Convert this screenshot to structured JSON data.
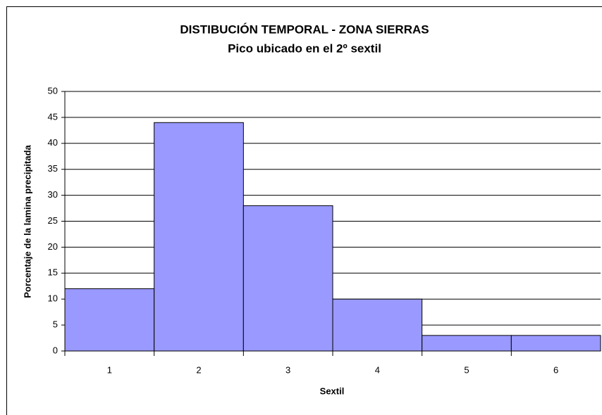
{
  "chart_data": {
    "type": "bar",
    "title": "DISTIBUCIÓN TEMPORAL - ZONA SIERRAS",
    "subtitle": "Pico ubicado en el 2º sextil",
    "x_label": "Sextil",
    "y_label": "Porcentaje de la lamina precipitada",
    "categories": [
      "1",
      "2",
      "3",
      "4",
      "5",
      "6"
    ],
    "values": [
      12,
      44,
      28,
      10,
      3,
      3
    ],
    "color": "#9999ff",
    "ylim": [
      0,
      50
    ],
    "yticks": [
      0,
      5,
      10,
      15,
      20,
      25,
      30,
      35,
      40,
      45,
      50
    ],
    "grid": true
  }
}
